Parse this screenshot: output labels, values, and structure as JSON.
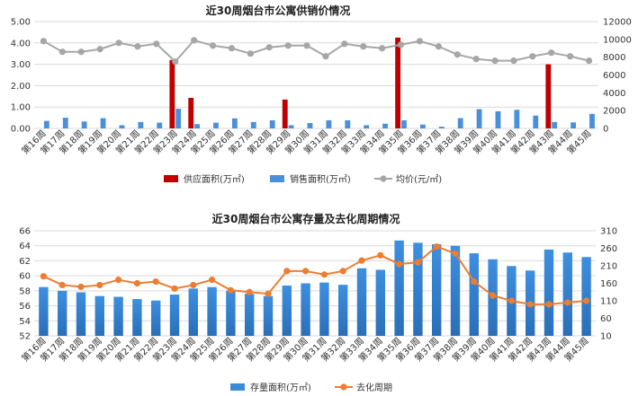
{
  "chart_data": [
    {
      "type": "bar",
      "title": "近30周烟台市公寓供销价情况",
      "categories": [
        "第16周",
        "第17周",
        "第18周",
        "第19周",
        "第20周",
        "第21周",
        "第22周",
        "第23周",
        "第24周",
        "第25周",
        "第26周",
        "第27周",
        "第28周",
        "第29周",
        "第30周",
        "第31周",
        "第32周",
        "第33周",
        "第34周",
        "第35周",
        "第36周",
        "第37周",
        "第38周",
        "第39周",
        "第40周",
        "第41周",
        "第42周",
        "第43周",
        "第44周",
        "第45周"
      ],
      "series": [
        {
          "name": "供应面积(万㎡)",
          "type": "bar",
          "axis": "left",
          "color": "#c00000",
          "values": [
            0,
            0,
            0,
            0,
            0,
            0,
            0,
            3.2,
            1.43,
            0,
            0,
            0,
            0,
            1.35,
            0,
            0,
            0,
            0,
            0,
            4.25,
            0,
            0,
            0,
            0,
            0,
            0,
            0,
            3.0,
            0,
            0
          ]
        },
        {
          "name": "销售面积(万㎡)",
          "type": "bar",
          "axis": "left",
          "color": "#4a90d9",
          "values": [
            0.35,
            0.5,
            0.32,
            0.48,
            0.15,
            0.3,
            0.27,
            0.92,
            0.2,
            0.27,
            0.47,
            0.3,
            0.38,
            0.15,
            0.25,
            0.38,
            0.38,
            0.15,
            0.22,
            0.38,
            0.18,
            0.08,
            0.48,
            0.9,
            0.8,
            0.87,
            0.6,
            0.3,
            0.28,
            0.68
          ]
        },
        {
          "name": "均价(元/㎡)",
          "type": "line",
          "axis": "right",
          "color": "#a6a6a6",
          "values": [
            9800,
            8600,
            8600,
            8900,
            9600,
            9200,
            9500,
            7500,
            9900,
            9300,
            9000,
            8400,
            9100,
            9300,
            9300,
            8100,
            9500,
            9200,
            9000,
            9400,
            9800,
            9200,
            8300,
            7800,
            7600,
            7600,
            8100,
            8500,
            8100,
            7600
          ]
        }
      ],
      "y_left": {
        "range": [
          0,
          5
        ],
        "ticks": [
          "0.00",
          "1.00",
          "2.00",
          "3.00",
          "4.00",
          "5.00"
        ]
      },
      "y_right": {
        "range": [
          0,
          12000
        ],
        "ticks": [
          "0",
          "2000",
          "4000",
          "6000",
          "8000",
          "10000",
          "12000"
        ]
      },
      "legend": "bottom-center",
      "grid": true
    },
    {
      "type": "bar",
      "title": "近30周烟台市公寓存量及去化周期情况",
      "categories": [
        "第16周",
        "第17周",
        "第18周",
        "第19周",
        "第20周",
        "第21周",
        "第22周",
        "第23周",
        "第24周",
        "第25周",
        "第26周",
        "第27周",
        "第28周",
        "第29周",
        "第30周",
        "第31周",
        "第32周",
        "第33周",
        "第34周",
        "第35周",
        "第36周",
        "第37周",
        "第38周",
        "第39周",
        "第40周",
        "第41周",
        "第42周",
        "第43周",
        "第44周",
        "第45周"
      ],
      "series": [
        {
          "name": "存量面积(万㎡)",
          "type": "bar",
          "axis": "left",
          "color": "#3c8ad6",
          "values": [
            58.5,
            58.0,
            57.8,
            57.3,
            57.2,
            56.9,
            56.7,
            57.5,
            58.3,
            58.5,
            58.0,
            57.6,
            57.3,
            58.7,
            59.0,
            59.1,
            58.8,
            61.0,
            60.8,
            64.7,
            64.4,
            64.2,
            64.0,
            63.0,
            62.2,
            61.3,
            60.7,
            63.5,
            63.1,
            62.5
          ]
        },
        {
          "name": "去化周期",
          "type": "line",
          "axis": "right",
          "color": "#ed7d31",
          "values": [
            180,
            155,
            150,
            155,
            170,
            160,
            165,
            145,
            155,
            170,
            140,
            135,
            130,
            195,
            195,
            185,
            195,
            225,
            240,
            215,
            220,
            265,
            245,
            165,
            125,
            110,
            100,
            100,
            105,
            110
          ]
        }
      ],
      "y_left": {
        "range": [
          52,
          66
        ],
        "ticks": [
          "52",
          "54",
          "56",
          "58",
          "60",
          "62",
          "64",
          "66"
        ]
      },
      "y_right": {
        "range": [
          10,
          310
        ],
        "ticks": [
          "10",
          "60",
          "110",
          "160",
          "210",
          "260",
          "310"
        ]
      },
      "legend": "bottom-center",
      "grid": true
    }
  ]
}
